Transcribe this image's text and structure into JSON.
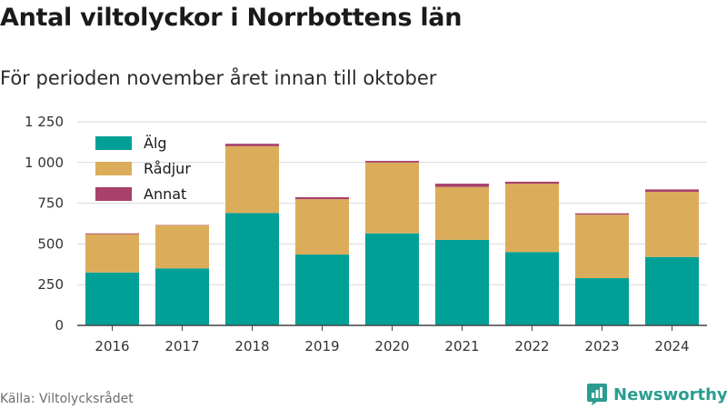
{
  "title": "Antal viltolyckor i Norrbottens län",
  "subtitle": "För perioden november året innan till oktober",
  "source": "Källa: Viltolycksrådet",
  "brand": {
    "name": "Newsworthy",
    "icon": "newsworthy-logo-icon",
    "color": "#2a9d8f"
  },
  "chart_data": {
    "type": "bar",
    "stacked": true,
    "title": "Antal viltolyckor i Norrbottens län",
    "subtitle": "För perioden november året innan till oktober",
    "xlabel": "",
    "ylabel": "",
    "categories": [
      "2016",
      "2017",
      "2018",
      "2019",
      "2020",
      "2021",
      "2022",
      "2023",
      "2024"
    ],
    "series": [
      {
        "name": "Älg",
        "color": "#00a096",
        "values": [
          325,
          350,
          690,
          435,
          565,
          525,
          450,
          290,
          420
        ]
      },
      {
        "name": "Rådjur",
        "color": "#dbad5b",
        "values": [
          235,
          265,
          410,
          340,
          435,
          325,
          420,
          390,
          400
        ]
      },
      {
        "name": "Annat",
        "color": "#a8416c",
        "values": [
          5,
          2,
          15,
          12,
          10,
          20,
          12,
          8,
          15
        ]
      }
    ],
    "ylim": [
      0,
      1250
    ],
    "yticks": [
      0,
      250,
      500,
      750,
      1000,
      1250
    ],
    "ytick_labels": [
      "0",
      "250",
      "500",
      "750",
      "1 000",
      "1 250"
    ],
    "grid": true,
    "legend_position": "top-left"
  }
}
